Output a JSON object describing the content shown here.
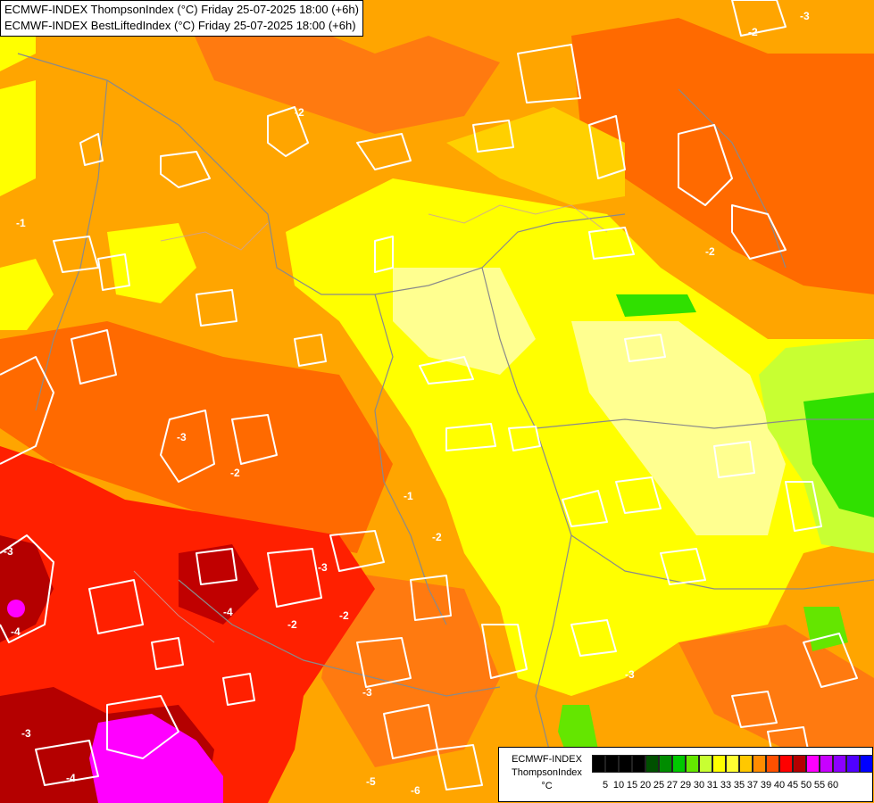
{
  "header": {
    "line1": "ECMWF-INDEX ThompsonIndex (°C) Friday 25-07-2025 18:00 (+6h)",
    "line2": "ECMWF-INDEX BestLiftedIndex (°C) Friday 25-07-2025 18:00 (+6h)"
  },
  "legend": {
    "line1": "ECMWF-INDEX",
    "line2": "ThompsonIndex",
    "unit": "°C",
    "ticks": [
      "5",
      "10",
      "15",
      "20",
      "25",
      "27",
      "29",
      "30",
      "31",
      "33",
      "35",
      "37",
      "39",
      "40",
      "45",
      "50",
      "55",
      "60"
    ],
    "colors": [
      "#000000",
      "#000000",
      "#000000",
      "#000000",
      "#005000",
      "#008c00",
      "#00c800",
      "#64e600",
      "#c8ff32",
      "#ffff00",
      "#ffff32",
      "#ffc800",
      "#ff8c00",
      "#ff5000",
      "#ff0000",
      "#b40000",
      "#ff00ff",
      "#c800ff",
      "#8c00ff",
      "#5000ff",
      "#0000ff"
    ]
  },
  "map": {
    "contour_labels": [
      "-2",
      "-3",
      "-2",
      "-1",
      "-2",
      "-3",
      "-2",
      "-2",
      "-3",
      "-2",
      "-4",
      "-3",
      "-4",
      "-2",
      "-3",
      "-3",
      "-4",
      "-5",
      "-6",
      "-3",
      "-1"
    ]
  }
}
